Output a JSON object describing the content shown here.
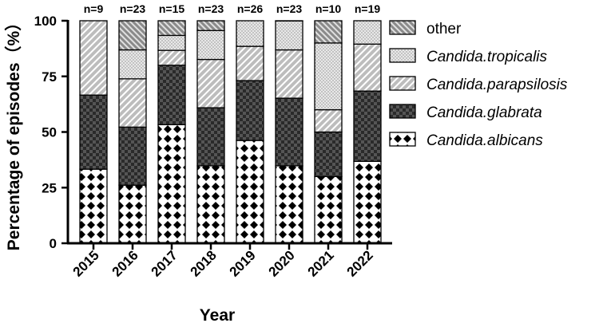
{
  "chart_data": {
    "type": "bar",
    "stacked": true,
    "xlabel": "Year",
    "ylabel": "Percentage of episodes（%）",
    "ylim": [
      0,
      100
    ],
    "yticks": [
      "0",
      "25",
      "50",
      "75",
      "100"
    ],
    "categories": [
      "2015",
      "2016",
      "2017",
      "2018",
      "2019",
      "2020",
      "2021",
      "2022"
    ],
    "n_labels": [
      "n=9",
      "n=23",
      "n=15",
      "n=23",
      "n=26",
      "n=23",
      "n=10",
      "n=19"
    ],
    "legend_position": "right",
    "series": [
      {
        "name": "Candida.albicans",
        "pattern": "checker-white",
        "values": [
          33.3,
          26.1,
          53.3,
          34.8,
          46.2,
          34.8,
          30.0,
          36.8
        ]
      },
      {
        "name": "Candida.glabrata",
        "pattern": "checker-dark",
        "values": [
          33.3,
          26.1,
          26.7,
          26.1,
          26.9,
          30.4,
          20.0,
          31.6
        ]
      },
      {
        "name": "Candida.parapsilosis",
        "pattern": "diagonal-gray",
        "values": [
          33.4,
          21.7,
          6.7,
          21.7,
          15.4,
          21.7,
          10.0,
          21.1
        ]
      },
      {
        "name": "Candida.tropicalis",
        "pattern": "dotted-light",
        "values": [
          0,
          13.0,
          6.7,
          13.0,
          11.5,
          13.0,
          30.0,
          10.5
        ]
      },
      {
        "name": "other",
        "pattern": "hatched-dark",
        "values": [
          0,
          13.1,
          6.6,
          4.4,
          0,
          0.1,
          10.0,
          0
        ]
      }
    ],
    "legend": [
      {
        "label": "other",
        "italic": false,
        "pattern": "hatched-dark"
      },
      {
        "label": "Candida.tropicalis",
        "italic": true,
        "pattern": "dotted-light"
      },
      {
        "label": "Candida.parapsilosis",
        "italic": true,
        "pattern": "diagonal-gray"
      },
      {
        "label": "Candida.glabrata",
        "italic": true,
        "pattern": "checker-dark"
      },
      {
        "label": "Candida.albicans",
        "italic": true,
        "pattern": "checker-white"
      }
    ]
  }
}
